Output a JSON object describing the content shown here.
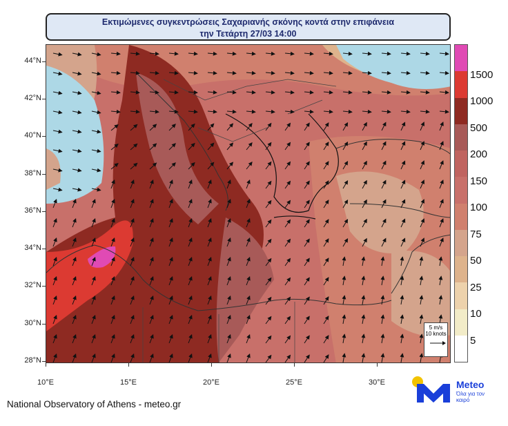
{
  "title": {
    "line1": "Εκτιμώμενες συγκεντρώσεις Σαχαριανής σκόνης κοντά στην επιφάνεια",
    "line2": "την Τετάρτη 27/03 14:00"
  },
  "lat_labels": [
    "44°N",
    "42°N",
    "40°N",
    "38°N",
    "36°N",
    "34°N",
    "32°N",
    "30°N",
    "28°N"
  ],
  "lon_labels": [
    "10°E",
    "15°E",
    "20°E",
    "25°E",
    "30°E"
  ],
  "colorbar": {
    "labels": [
      "1500",
      "1000",
      "500",
      "200",
      "150",
      "100",
      "75",
      "50",
      "25",
      "10",
      "5"
    ],
    "colors": [
      "#e04ab4",
      "#dc3a32",
      "#8e2a22",
      "#a85a58",
      "#c06460",
      "#c8706a",
      "#d0806e",
      "#d4a48c",
      "#deb38c",
      "#edd2ac",
      "#f2ecc8",
      "#ffffff"
    ]
  },
  "wind_legend": {
    "speed": "5 m/s",
    "knots": "10 knots"
  },
  "footer": "National Observatory of Athens - meteo.gr",
  "logo": {
    "brand": "Meteo",
    "tagline": "Όλα για τον καιρό",
    "sun_color": "#f2c300",
    "brand_color": "#1a3fd9"
  }
}
